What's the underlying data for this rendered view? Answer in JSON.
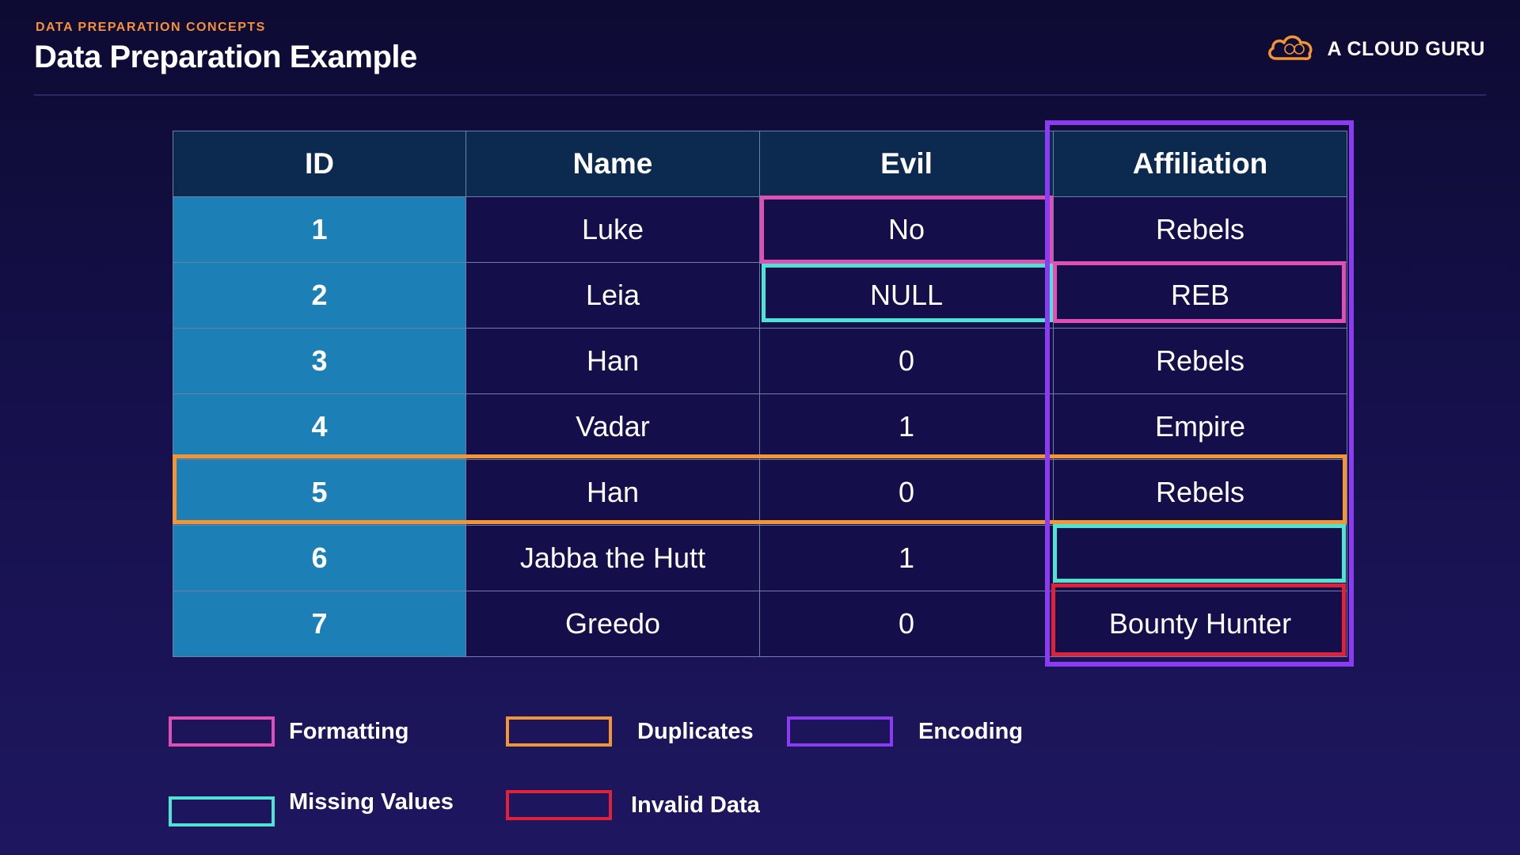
{
  "header": {
    "eyebrow": "DATA PREPARATION CONCEPTS",
    "title": "Data Preparation Example",
    "brand": "A CLOUD GURU",
    "brand_icon": "cloud-icon"
  },
  "table": {
    "columns": [
      "ID",
      "Name",
      "Evil",
      "Affiliation"
    ],
    "rows": [
      {
        "id": "1",
        "name": "Luke",
        "evil": "No",
        "affiliation": "Rebels"
      },
      {
        "id": "2",
        "name": "Leia",
        "evil": "NULL",
        "affiliation": "REB"
      },
      {
        "id": "3",
        "name": "Han",
        "evil": "0",
        "affiliation": "Rebels"
      },
      {
        "id": "4",
        "name": "Vadar",
        "evil": "1",
        "affiliation": "Empire"
      },
      {
        "id": "5",
        "name": "Han",
        "evil": "0",
        "affiliation": "Rebels"
      },
      {
        "id": "6",
        "name": "Jabba the Hutt",
        "evil": "1",
        "affiliation": ""
      },
      {
        "id": "7",
        "name": "Greedo",
        "evil": "0",
        "affiliation": "Bounty Hunter"
      }
    ]
  },
  "legend": {
    "formatting": "Formatting",
    "duplicates": "Duplicates",
    "encoding": "Encoding",
    "missing_values": "Missing Values",
    "invalid_data": "Invalid Data"
  },
  "colors": {
    "formatting": "#e04fb4",
    "duplicates": "#f39435",
    "encoding": "#8b3cf0",
    "missing_values": "#4fe3d3",
    "invalid_data": "#e0213a",
    "id_column": "#1c7fb6",
    "header_row": "#0c2a4f",
    "accent": "#f6913a"
  }
}
